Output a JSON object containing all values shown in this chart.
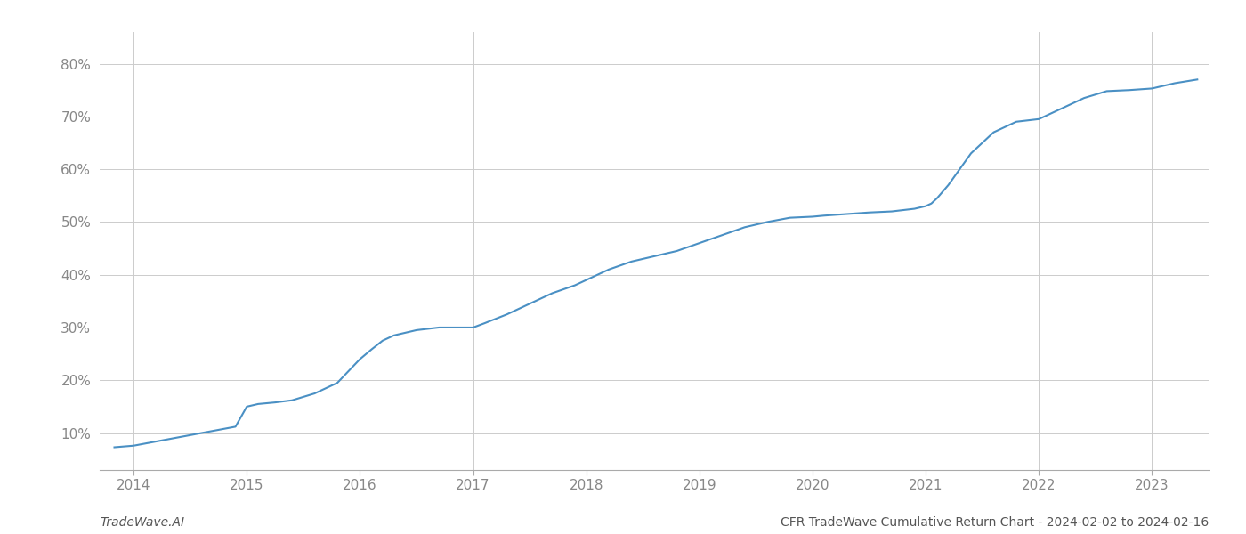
{
  "title": "",
  "footer_left": "TradeWave.AI",
  "footer_right": "CFR TradeWave Cumulative Return Chart - 2024-02-02 to 2024-02-16",
  "line_color": "#4a90c4",
  "background_color": "#ffffff",
  "grid_color": "#cccccc",
  "xlim": [
    2013.7,
    2023.5
  ],
  "ylim": [
    0.03,
    0.86
  ],
  "yticks": [
    0.1,
    0.2,
    0.3,
    0.4,
    0.5,
    0.6,
    0.7,
    0.8
  ],
  "xticks": [
    2014,
    2015,
    2016,
    2017,
    2018,
    2019,
    2020,
    2021,
    2022,
    2023
  ],
  "x": [
    2013.83,
    2014.0,
    2014.15,
    2014.3,
    2014.5,
    2014.7,
    2014.9,
    2015.0,
    2015.1,
    2015.25,
    2015.4,
    2015.6,
    2015.8,
    2016.0,
    2016.1,
    2016.2,
    2016.3,
    2016.5,
    2016.7,
    2016.9,
    2017.0,
    2017.1,
    2017.3,
    2017.5,
    2017.7,
    2017.9,
    2018.0,
    2018.2,
    2018.4,
    2018.6,
    2018.8,
    2019.0,
    2019.2,
    2019.4,
    2019.6,
    2019.8,
    2020.0,
    2020.1,
    2020.3,
    2020.5,
    2020.7,
    2020.9,
    2021.0,
    2021.05,
    2021.1,
    2021.2,
    2021.4,
    2021.6,
    2021.8,
    2022.0,
    2022.2,
    2022.4,
    2022.6,
    2022.8,
    2023.0,
    2023.2,
    2023.4
  ],
  "y": [
    0.073,
    0.076,
    0.082,
    0.088,
    0.096,
    0.104,
    0.112,
    0.15,
    0.155,
    0.158,
    0.162,
    0.175,
    0.195,
    0.24,
    0.258,
    0.275,
    0.285,
    0.295,
    0.3,
    0.3,
    0.3,
    0.308,
    0.325,
    0.345,
    0.365,
    0.38,
    0.39,
    0.41,
    0.425,
    0.435,
    0.445,
    0.46,
    0.475,
    0.49,
    0.5,
    0.508,
    0.51,
    0.512,
    0.515,
    0.518,
    0.52,
    0.525,
    0.53,
    0.535,
    0.545,
    0.57,
    0.63,
    0.67,
    0.69,
    0.695,
    0.715,
    0.735,
    0.748,
    0.75,
    0.753,
    0.763,
    0.77
  ],
  "line_width": 1.5,
  "tick_color": "#888888",
  "tick_fontsize": 11,
  "footer_fontsize": 10
}
